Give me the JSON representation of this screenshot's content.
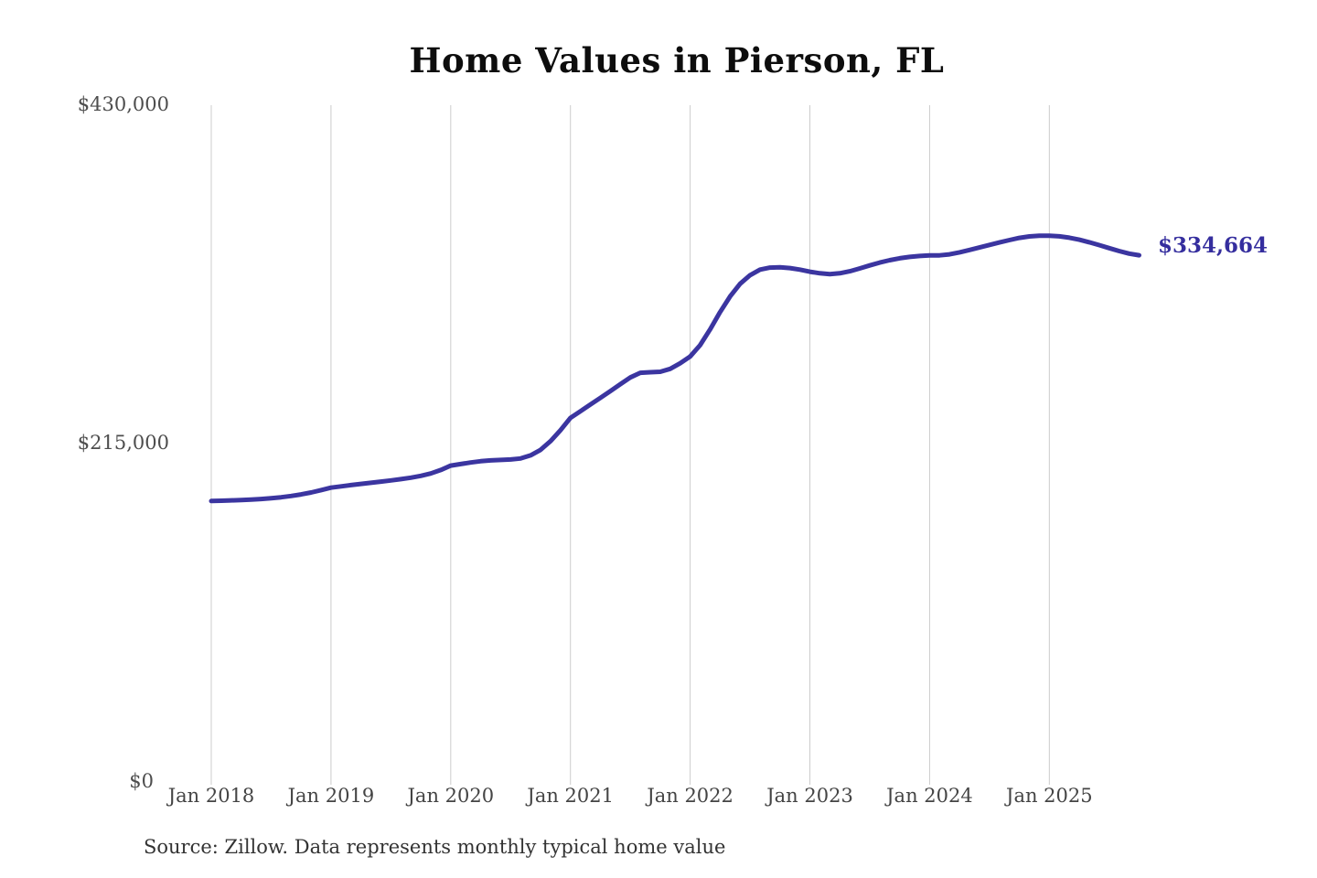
{
  "chart_data": {
    "type": "line",
    "title": "Home Values in Pierson, FL",
    "source_note": "Source: Zillow. Data represents monthly typical home value",
    "series_name": "Monthly typical home value",
    "end_label": "$334,664",
    "end_value": 334664,
    "x_tick_labels": [
      "Jan 2018",
      "Jan 2019",
      "Jan 2020",
      "Jan 2021",
      "Jan 2022",
      "Jan 2023",
      "Jan 2024",
      "Jan 2025"
    ],
    "y_tick_labels": [
      "$0",
      "$215,000",
      "$430,000"
    ],
    "y_tick_values": [
      0,
      215000,
      430000
    ],
    "ylim": [
      0,
      430000
    ],
    "grid": "vertical-only",
    "legend": "none",
    "line_color": "#3b35a0",
    "end_label_color": "#352e9e",
    "grid_color": "#cccccc",
    "x": [
      "2018-01",
      "2018-02",
      "2018-03",
      "2018-04",
      "2018-05",
      "2018-06",
      "2018-07",
      "2018-08",
      "2018-09",
      "2018-10",
      "2018-11",
      "2018-12",
      "2019-01",
      "2019-02",
      "2019-03",
      "2019-04",
      "2019-05",
      "2019-06",
      "2019-07",
      "2019-08",
      "2019-09",
      "2019-10",
      "2019-11",
      "2019-12",
      "2020-01",
      "2020-02",
      "2020-03",
      "2020-04",
      "2020-05",
      "2020-06",
      "2020-07",
      "2020-08",
      "2020-09",
      "2020-10",
      "2020-11",
      "2020-12",
      "2021-01",
      "2021-02",
      "2021-03",
      "2021-04",
      "2021-05",
      "2021-06",
      "2021-07",
      "2021-08",
      "2021-09",
      "2021-10",
      "2021-11",
      "2021-12",
      "2022-01",
      "2022-02",
      "2022-03",
      "2022-04",
      "2022-05",
      "2022-06",
      "2022-07",
      "2022-08",
      "2022-09",
      "2022-10",
      "2022-11",
      "2022-12",
      "2023-01",
      "2023-02",
      "2023-03",
      "2023-04",
      "2023-05",
      "2023-06",
      "2023-07",
      "2023-08",
      "2023-09",
      "2023-10",
      "2023-11",
      "2023-12",
      "2024-01",
      "2024-02",
      "2024-03",
      "2024-04",
      "2024-05",
      "2024-06",
      "2024-07",
      "2024-08",
      "2024-09",
      "2024-10",
      "2024-11",
      "2024-12",
      "2025-01",
      "2025-02",
      "2025-03",
      "2025-04",
      "2025-05",
      "2025-06",
      "2025-07",
      "2025-08",
      "2025-09",
      "2025-10"
    ],
    "values": [
      178500,
      178700,
      178900,
      179100,
      179400,
      179800,
      180300,
      180900,
      181700,
      182700,
      183900,
      185400,
      187000,
      187800,
      188600,
      189400,
      190100,
      190800,
      191600,
      192400,
      193300,
      194500,
      196000,
      198200,
      201000,
      202000,
      203000,
      203800,
      204300,
      204600,
      204900,
      205500,
      207500,
      211000,
      216500,
      223500,
      231300,
      235500,
      239800,
      244000,
      248300,
      252700,
      257000,
      260000,
      260300,
      260600,
      262500,
      266000,
      270300,
      277500,
      287500,
      298500,
      308500,
      316500,
      322000,
      325500,
      326800,
      327000,
      326500,
      325500,
      324200,
      323200,
      322700,
      323200,
      324500,
      326300,
      328200,
      330000,
      331500,
      332700,
      333600,
      334200,
      334500,
      334600,
      335200,
      336500,
      338000,
      339600,
      341200,
      342800,
      344300,
      345700,
      346600,
      347000,
      347000,
      346700,
      345800,
      344500,
      342900,
      341100,
      339200,
      337300,
      335700,
      334664
    ]
  }
}
